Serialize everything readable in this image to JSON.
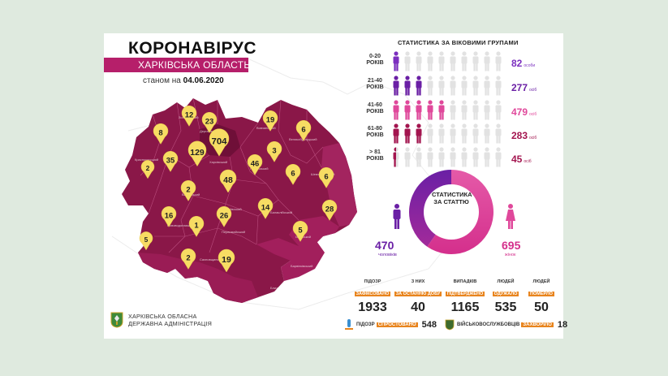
{
  "header": {
    "title": "КОРОНАВІРУС",
    "subtitle": "ХАРКІВСЬКА ОБЛАСТЬ",
    "as_of_prefix": "станом на",
    "as_of_date": "04.06.2020"
  },
  "colors": {
    "map_dark": "#8a1748",
    "map_mid": "#a21f5c",
    "map_light": "#c23a7a",
    "pin": "#f7dc63",
    "male": "#6a1fa5",
    "female": "#d42f8c",
    "highlight": "#e8841d"
  },
  "map": {
    "pins": [
      "12",
      "23",
      "704",
      "19",
      "8",
      "6",
      "129",
      "35",
      "2",
      "46",
      "3",
      "48",
      "6",
      "6",
      "2",
      "16",
      "26",
      "14",
      "28",
      "1",
      "5",
      "5",
      "2",
      "19"
    ]
  },
  "administration": {
    "line1": "ХАРКІВСЬКА ОБЛАСНА",
    "line2": "ДЕРЖАВНА АДМІНІСТРАЦІЯ"
  },
  "age_groups": {
    "title": "СТАТИСТИКА ЗА ВІКОВИМИ ГРУПАМИ",
    "rows": [
      {
        "label1": "0-20",
        "label2": "РОКІВ",
        "count": "82",
        "unit": "особи",
        "filled": 1,
        "color": "#7b2fbf"
      },
      {
        "label1": "21-40",
        "label2": "РОКІВ",
        "count": "277",
        "unit": "осіб",
        "filled": 3,
        "color": "#6a1fa5"
      },
      {
        "label1": "41-60",
        "label2": "РОКІВ",
        "count": "479",
        "unit": "осіб",
        "filled": 5,
        "color": "#e0489b"
      },
      {
        "label1": "61-80",
        "label2": "РОКІВ",
        "count": "283",
        "unit": "осіб",
        "filled": 3,
        "color": "#a3154f"
      },
      {
        "label1": "> 81",
        "label2": "РОКІВ",
        "count": "45",
        "unit": "осіб",
        "filled": 0.5,
        "color": "#a3154f"
      }
    ]
  },
  "gender": {
    "title": "СТАТИСТИКА ЗА СТАТТЮ",
    "male_count": "470",
    "male_unit": "чоловіків",
    "female_count": "695",
    "female_unit": "жінок"
  },
  "stats": [
    {
      "line1": "ПІДОЗР",
      "line2": "ЗАФІКСОВАНО",
      "value": "1933"
    },
    {
      "line1": "З НИХ",
      "line2": "ЗА ОСТАННЮ ДОБУ",
      "value": "40"
    },
    {
      "line1": "ВИПАДКІВ",
      "line2": "ПІДТВЕРДЖЕНО",
      "value": "1165"
    },
    {
      "line1": "ЛЮДЕЙ",
      "line2": "ОДУЖАЛО",
      "value": "535"
    },
    {
      "line1": "ЛЮДЕЙ",
      "line2": "ПОМЕРЛО",
      "value": "50"
    }
  ],
  "bottom": {
    "refuted_prefix": "ПІДОЗР",
    "refuted_tag": "СПРОСТОВАНО",
    "refuted_value": "548",
    "military_prefix": "ВІЙСЬКОВОСЛУЖБОВЦІВ",
    "military_tag": "ЗАХВОРІЛО",
    "military_value": "18"
  }
}
